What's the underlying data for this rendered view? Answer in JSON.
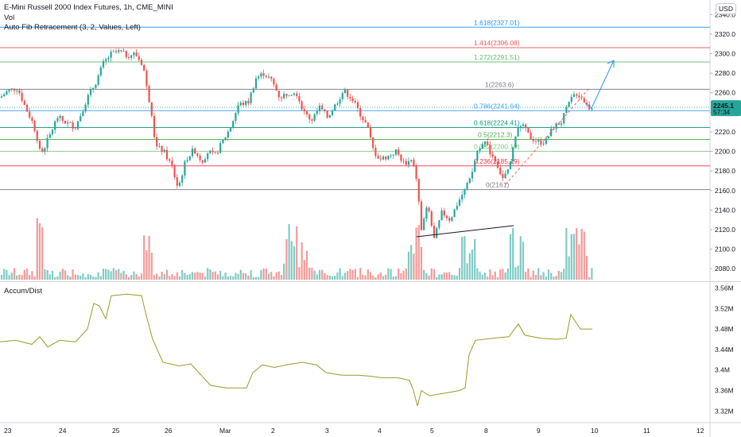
{
  "header": {
    "title": "E-Mini Russell 2000 Index Futures, 1h, CME_MINI",
    "vol_label": "Vol",
    "fib_label": "Auto Fib Retracement (3, 2, Values, Left)",
    "currency": "USD"
  },
  "indicator": {
    "label": "Accum/Dist"
  },
  "price_tag": {
    "price": "2245.1",
    "countdown": "57:34"
  },
  "colors": {
    "up": "#26a69a",
    "down": "#ef5350",
    "vol_up": "#80cbc4",
    "vol_down": "#f49a99",
    "ad_line": "#9a9a28",
    "arrow": "#2196f3"
  },
  "chart_data": {
    "type": "candlestick",
    "price_axis": {
      "ticks": [
        "2340.0",
        "2320.0",
        "2300.0",
        "2280.0",
        "2260.0",
        "2240.0",
        "2220.0",
        "2200.0",
        "2180.0",
        "2160.0",
        "2140.0",
        "2120.0",
        "2100.0",
        "2080.0"
      ],
      "range": [
        2068,
        2350
      ]
    },
    "ad_axis": {
      "ticks": [
        "3.56M",
        "3.52M",
        "3.48M",
        "3.44M",
        "3.4M",
        "3.36M",
        "3.32M"
      ],
      "range": [
        3.305,
        3.57
      ]
    },
    "time_axis": {
      "ticks": [
        "23",
        "24",
        "25",
        "26",
        "Mar",
        "2",
        "3",
        "4",
        "5",
        "8",
        "9",
        "10",
        "11",
        "12"
      ]
    },
    "fib_levels": [
      {
        "label": "1.618(2327.01)",
        "value": 2327.01,
        "color": "#2196f3"
      },
      {
        "label": "1.414(2306.08)",
        "value": 2306.08,
        "color": "#ef5350"
      },
      {
        "label": "1.272(2291.51)",
        "value": 2291.51,
        "color": "#66bb6a"
      },
      {
        "label": "1(2263.6)",
        "value": 2263.6,
        "color": "#787b86"
      },
      {
        "label": "0.786(2241.64)",
        "value": 2241.64,
        "color": "#42a5f5"
      },
      {
        "label": "0.618(2224.41)",
        "value": 2224.41,
        "color": "#089981"
      },
      {
        "label": "0.5(2212.3)",
        "value": 2212.3,
        "color": "#4caf50"
      },
      {
        "label": "0.382(2200.19)",
        "value": 2200.19,
        "color": "#81c784"
      },
      {
        "label": "0.236(2185.19)",
        "value": 2185.19,
        "color": "#f23645"
      },
      {
        "label": "0(2161)",
        "value": 2161,
        "color": "#787b86"
      }
    ],
    "price_path": [
      [
        0,
        2255
      ],
      [
        10,
        2262
      ],
      [
        22,
        2265
      ],
      [
        32,
        2245
      ],
      [
        42,
        2228
      ],
      [
        52,
        2198
      ],
      [
        62,
        2215
      ],
      [
        72,
        2235
      ],
      [
        82,
        2230
      ],
      [
        95,
        2225
      ],
      [
        110,
        2255
      ],
      [
        120,
        2270
      ],
      [
        130,
        2290
      ],
      [
        140,
        2300
      ],
      [
        150,
        2302
      ],
      [
        160,
        2298
      ],
      [
        170,
        2300
      ],
      [
        180,
        2288
      ],
      [
        188,
        2250
      ],
      [
        196,
        2205
      ],
      [
        206,
        2200
      ],
      [
        216,
        2185
      ],
      [
        224,
        2162
      ],
      [
        234,
        2192
      ],
      [
        244,
        2202
      ],
      [
        254,
        2190
      ],
      [
        262,
        2200
      ],
      [
        270,
        2195
      ],
      [
        280,
        2210
      ],
      [
        290,
        2225
      ],
      [
        300,
        2248
      ],
      [
        312,
        2250
      ],
      [
        322,
        2275
      ],
      [
        332,
        2280
      ],
      [
        342,
        2272
      ],
      [
        352,
        2255
      ],
      [
        362,
        2260
      ],
      [
        372,
        2262
      ],
      [
        382,
        2240
      ],
      [
        392,
        2232
      ],
      [
        402,
        2245
      ],
      [
        412,
        2235
      ],
      [
        422,
        2248
      ],
      [
        432,
        2262
      ],
      [
        442,
        2255
      ],
      [
        452,
        2240
      ],
      [
        462,
        2225
      ],
      [
        470,
        2200
      ],
      [
        478,
        2192
      ],
      [
        488,
        2195
      ],
      [
        498,
        2200
      ],
      [
        508,
        2188
      ],
      [
        518,
        2190
      ],
      [
        524,
        2172
      ],
      [
        530,
        2120
      ],
      [
        538,
        2145
      ],
      [
        546,
        2110
      ],
      [
        556,
        2138
      ],
      [
        566,
        2130
      ],
      [
        576,
        2148
      ],
      [
        584,
        2160
      ],
      [
        592,
        2172
      ],
      [
        600,
        2200
      ],
      [
        608,
        2212
      ],
      [
        616,
        2200
      ],
      [
        624,
        2190
      ],
      [
        632,
        2172
      ],
      [
        640,
        2180
      ],
      [
        650,
        2225
      ],
      [
        658,
        2225
      ],
      [
        666,
        2215
      ],
      [
        676,
        2210
      ],
      [
        686,
        2210
      ],
      [
        696,
        2225
      ],
      [
        706,
        2230
      ],
      [
        716,
        2250
      ],
      [
        724,
        2260
      ],
      [
        732,
        2255
      ],
      [
        740,
        2245
      ],
      [
        746,
        2245
      ]
    ],
    "ad_path": [
      [
        0,
        3.455
      ],
      [
        20,
        3.458
      ],
      [
        40,
        3.45
      ],
      [
        50,
        3.465
      ],
      [
        60,
        3.445
      ],
      [
        75,
        3.458
      ],
      [
        95,
        3.455
      ],
      [
        110,
        3.48
      ],
      [
        118,
        3.53
      ],
      [
        125,
        3.525
      ],
      [
        133,
        3.5
      ],
      [
        140,
        3.545
      ],
      [
        160,
        3.548
      ],
      [
        178,
        3.545
      ],
      [
        185,
        3.5
      ],
      [
        192,
        3.46
      ],
      [
        205,
        3.415
      ],
      [
        225,
        3.408
      ],
      [
        240,
        3.412
      ],
      [
        250,
        3.395
      ],
      [
        265,
        3.37
      ],
      [
        285,
        3.365
      ],
      [
        310,
        3.365
      ],
      [
        318,
        3.395
      ],
      [
        330,
        3.41
      ],
      [
        345,
        3.405
      ],
      [
        360,
        3.41
      ],
      [
        380,
        3.415
      ],
      [
        398,
        3.41
      ],
      [
        410,
        3.395
      ],
      [
        430,
        3.39
      ],
      [
        450,
        3.39
      ],
      [
        465,
        3.388
      ],
      [
        480,
        3.385
      ],
      [
        500,
        3.385
      ],
      [
        515,
        3.38
      ],
      [
        520,
        3.36
      ],
      [
        525,
        3.33
      ],
      [
        530,
        3.36
      ],
      [
        540,
        3.35
      ],
      [
        560,
        3.355
      ],
      [
        578,
        3.36
      ],
      [
        585,
        3.365
      ],
      [
        590,
        3.43
      ],
      [
        598,
        3.458
      ],
      [
        620,
        3.462
      ],
      [
        640,
        3.465
      ],
      [
        652,
        3.49
      ],
      [
        660,
        3.468
      ],
      [
        680,
        3.462
      ],
      [
        700,
        3.46
      ],
      [
        712,
        3.462
      ],
      [
        718,
        3.508
      ],
      [
        730,
        3.48
      ],
      [
        745,
        3.48
      ]
    ]
  }
}
